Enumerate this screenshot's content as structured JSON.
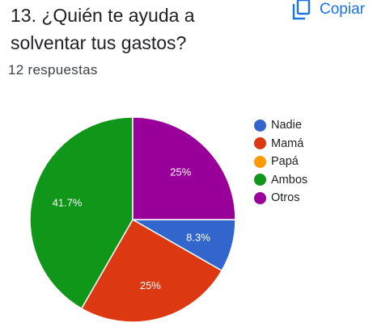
{
  "question": {
    "title": "13. ¿Quién te ayuda a solventar tus gastos?",
    "responses": "12 respuestas"
  },
  "toolbar": {
    "copy_label": "Copiar",
    "copy_icon": "copy-icon",
    "accent": "#1a73e8"
  },
  "chart_data": {
    "type": "pie",
    "title": "",
    "legend_position": "right",
    "slices": [
      {
        "label": "Nadie",
        "value": 8.3,
        "display": "8.3%",
        "color": "#3366cc"
      },
      {
        "label": "Mamá",
        "value": 25,
        "display": "25%",
        "color": "#dc3912"
      },
      {
        "label": "Papá",
        "value": 0,
        "display": "",
        "color": "#ff9900"
      },
      {
        "label": "Ambos",
        "value": 41.7,
        "display": "41.7%",
        "color": "#109618"
      },
      {
        "label": "Otros",
        "value": 25,
        "display": "25%",
        "color": "#990099"
      }
    ]
  }
}
